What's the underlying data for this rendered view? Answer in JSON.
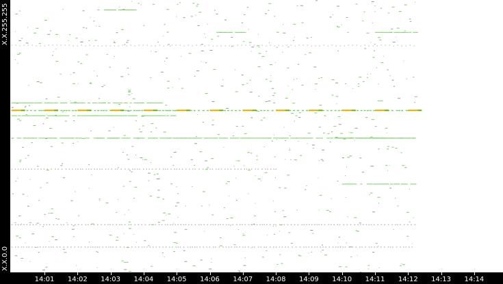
{
  "chart_data": {
    "type": "scatter",
    "title": "",
    "y_top_label": "X.X.255.255",
    "y_bottom_label": "X.X.0.0",
    "ylim": [
      0,
      255
    ],
    "xlim_minutes_after_14_00": [
      0,
      14.8
    ],
    "x_tick_labels": [
      "14:01",
      "14:02",
      "14:03",
      "14:04",
      "14:05",
      "14:06",
      "14:07",
      "14:08",
      "14:09",
      "14:10",
      "14:11",
      "14:12",
      "14:13",
      "14:14"
    ],
    "colors": {
      "flow": "#7ccf6a",
      "heavy": "#e0b000",
      "sparse": "#999999",
      "axis": "#000000"
    },
    "flows": [
      {
        "address": 246,
        "start": 2.6,
        "end": 3.7,
        "style": "flow"
      },
      {
        "address": 225,
        "start": 6.2,
        "end": 7.0,
        "style": "flow"
      },
      {
        "address": 225,
        "start": 11.0,
        "end": 12.2,
        "style": "flow"
      },
      {
        "address": 213,
        "start": 0.0,
        "end": 12.2,
        "style": "dotted"
      },
      {
        "address": 159,
        "start": 0.0,
        "end": 4.4,
        "style": "flow"
      },
      {
        "address": 152,
        "start": 0.0,
        "end": 12.2,
        "style": "heavy"
      },
      {
        "address": 147,
        "start": 0.0,
        "end": 5.0,
        "style": "flow"
      },
      {
        "address": 126,
        "start": 0.0,
        "end": 12.2,
        "style": "flow"
      },
      {
        "address": 126,
        "start": 9.8,
        "end": 12.2,
        "style": "flow"
      },
      {
        "address": 97,
        "start": 0.0,
        "end": 8.0,
        "style": "sparse"
      },
      {
        "address": 83,
        "start": 10.0,
        "end": 12.2,
        "style": "flow"
      },
      {
        "address": 45,
        "start": 0.0,
        "end": 12.2,
        "style": "sparse"
      },
      {
        "address": 24,
        "start": 0.0,
        "end": 12.2,
        "style": "sparse"
      }
    ]
  }
}
